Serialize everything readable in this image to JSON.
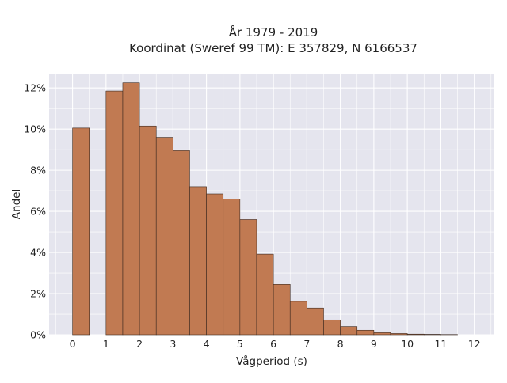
{
  "chart_data": {
    "type": "bar",
    "title_lines": [
      "År 1979 - 2019",
      "Koordinat (Sweref 99 TM): E 357829, N 6166537"
    ],
    "xlabel": "Vågperiod (s)",
    "ylabel": "Andel",
    "xlim": [
      -0.7,
      12.6
    ],
    "ylim": [
      0,
      12.7
    ],
    "x_ticks": [
      0,
      1,
      2,
      3,
      4,
      5,
      6,
      7,
      8,
      9,
      10,
      11,
      12
    ],
    "x_tick_labels": [
      "0",
      "1",
      "2",
      "3",
      "4",
      "5",
      "6",
      "7",
      "8",
      "9",
      "10",
      "11",
      "12"
    ],
    "y_ticks": [
      0,
      2,
      4,
      6,
      8,
      10,
      12
    ],
    "y_tick_labels": [
      "0%",
      "2%",
      "4%",
      "6%",
      "8%",
      "10%",
      "12%"
    ],
    "grid": true,
    "bin_width": 0.5,
    "bars": [
      {
        "x0": 0.0,
        "value": 10.05
      },
      {
        "x0": 1.0,
        "value": 11.85
      },
      {
        "x0": 1.5,
        "value": 12.25
      },
      {
        "x0": 2.0,
        "value": 10.15
      },
      {
        "x0": 2.5,
        "value": 9.6
      },
      {
        "x0": 3.0,
        "value": 8.95
      },
      {
        "x0": 3.5,
        "value": 7.2
      },
      {
        "x0": 4.0,
        "value": 6.85
      },
      {
        "x0": 4.5,
        "value": 6.6
      },
      {
        "x0": 5.0,
        "value": 5.6
      },
      {
        "x0": 5.5,
        "value": 3.92
      },
      {
        "x0": 6.0,
        "value": 2.45
      },
      {
        "x0": 6.5,
        "value": 1.62
      },
      {
        "x0": 7.0,
        "value": 1.3
      },
      {
        "x0": 7.5,
        "value": 0.72
      },
      {
        "x0": 8.0,
        "value": 0.4
      },
      {
        "x0": 8.5,
        "value": 0.22
      },
      {
        "x0": 9.0,
        "value": 0.1
      },
      {
        "x0": 9.5,
        "value": 0.06
      },
      {
        "x0": 10.0,
        "value": 0.03
      },
      {
        "x0": 10.5,
        "value": 0.02
      },
      {
        "x0": 11.0,
        "value": 0.01
      }
    ],
    "colors": {
      "plot_bg": "#e5e5ee",
      "grid": "#ffffff",
      "bar_fill": "#c17a52",
      "bar_stroke": "#3d2a20"
    }
  }
}
